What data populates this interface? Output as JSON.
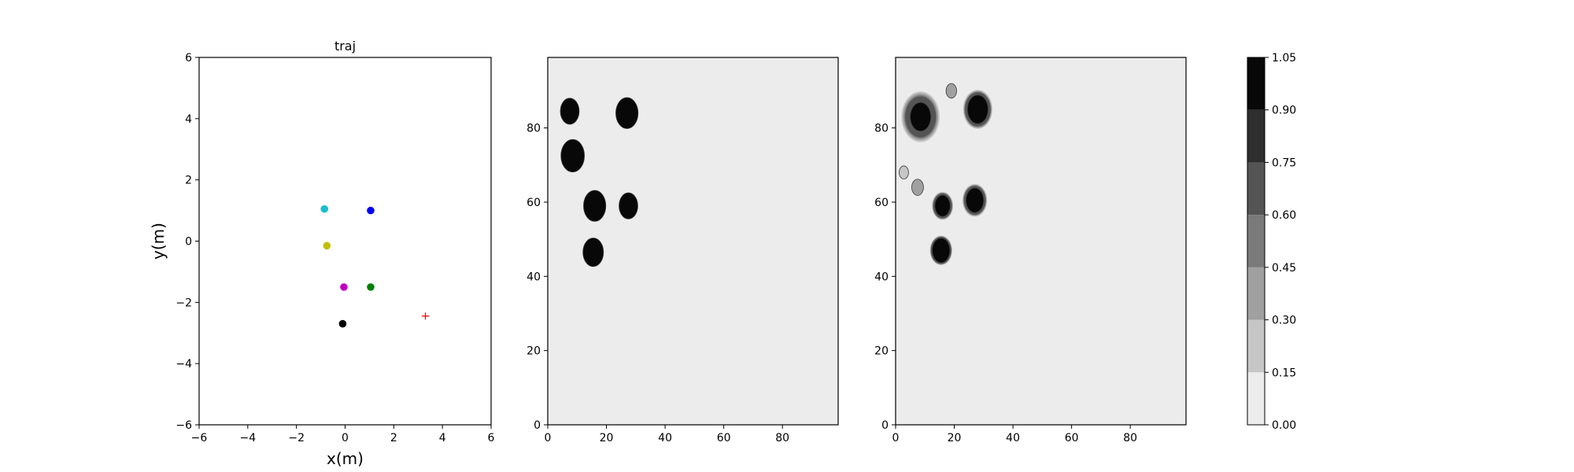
{
  "chart_data": [
    {
      "type": "scatter",
      "title": "traj",
      "xlabel": "x(m)",
      "ylabel": "y(m)",
      "xlim": [
        -6,
        6
      ],
      "ylim": [
        -6,
        6
      ],
      "xticks": [
        "−6",
        "−4",
        "−2",
        "0",
        "2",
        "4",
        "6"
      ],
      "yticks": [
        "−6",
        "−4",
        "−2",
        "0",
        "2",
        "4",
        "6"
      ],
      "grid": false,
      "points": [
        {
          "x": -0.85,
          "y": 1.05,
          "color": "#17becf",
          "marker": "circle"
        },
        {
          "x": 1.05,
          "y": 1.0,
          "color": "#0000ff",
          "marker": "circle"
        },
        {
          "x": -0.75,
          "y": -0.15,
          "color": "#bfbf00",
          "marker": "circle"
        },
        {
          "x": -0.05,
          "y": -1.5,
          "color": "#bf00bf",
          "marker": "circle"
        },
        {
          "x": 1.05,
          "y": -1.5,
          "color": "#008000",
          "marker": "circle"
        },
        {
          "x": -0.1,
          "y": -2.7,
          "color": "#000000",
          "marker": "circle"
        },
        {
          "x": 3.3,
          "y": -2.45,
          "color": "#ff0000",
          "marker": "plus"
        }
      ]
    },
    {
      "type": "heatmap",
      "title": "",
      "xlim": [
        0,
        99
      ],
      "ylim": [
        0,
        99
      ],
      "xticks": [
        "0",
        "20",
        "40",
        "60",
        "80"
      ],
      "yticks": [
        "0",
        "20",
        "40",
        "60",
        "80"
      ],
      "background_level": 0.0,
      "blobs": [
        {
          "x": 7.5,
          "y": 84.5,
          "r": 3.2,
          "level": 1.0
        },
        {
          "x": 27,
          "y": 84,
          "r": 3.8,
          "level": 1.0
        },
        {
          "x": 8.5,
          "y": 72.5,
          "r": 4.0,
          "level": 1.0
        },
        {
          "x": 16,
          "y": 59,
          "r": 3.8,
          "level": 1.0
        },
        {
          "x": 27.5,
          "y": 59,
          "r": 3.2,
          "level": 1.0
        },
        {
          "x": 15.5,
          "y": 46.5,
          "r": 3.5,
          "level": 1.0
        }
      ]
    },
    {
      "type": "heatmap",
      "title": "",
      "xlim": [
        0,
        99
      ],
      "ylim": [
        0,
        99
      ],
      "xticks": [
        "0",
        "20",
        "40",
        "60",
        "80"
      ],
      "yticks": [
        "0",
        "20",
        "40",
        "60",
        "80"
      ],
      "background_level": 0.0,
      "blobs": [
        {
          "x": 8.5,
          "y": 83,
          "r": 3.5,
          "level": 1.0,
          "halo": 6.5
        },
        {
          "x": 28,
          "y": 85,
          "r": 3.5,
          "level": 1.0,
          "halo": 5.0
        },
        {
          "x": 19,
          "y": 90,
          "r": 1.8,
          "level": 0.45,
          "halo": 0
        },
        {
          "x": 16,
          "y": 59,
          "r": 2.6,
          "level": 1.0,
          "halo": 3.6
        },
        {
          "x": 27,
          "y": 60.5,
          "r": 3.0,
          "level": 1.0,
          "halo": 4.2
        },
        {
          "x": 15.5,
          "y": 47,
          "r": 3.0,
          "level": 1.0,
          "halo": 3.8
        },
        {
          "x": 7.5,
          "y": 64,
          "r": 2.0,
          "level": 0.45,
          "halo": 0
        },
        {
          "x": 2.8,
          "y": 68,
          "r": 1.6,
          "level": 0.3,
          "halo": 0
        }
      ]
    },
    {
      "type": "colorbar",
      "range": [
        0.0,
        1.05
      ],
      "ticks": [
        "0.00",
        "0.15",
        "0.30",
        "0.45",
        "0.60",
        "0.75",
        "0.90",
        "1.05"
      ],
      "levels": [
        {
          "from": 0.0,
          "to": 0.15,
          "color": "#ececec"
        },
        {
          "from": 0.15,
          "to": 0.3,
          "color": "#c6c6c6"
        },
        {
          "from": 0.3,
          "to": 0.45,
          "color": "#a0a0a0"
        },
        {
          "from": 0.45,
          "to": 0.6,
          "color": "#7a7a7a"
        },
        {
          "from": 0.6,
          "to": 0.75,
          "color": "#545454"
        },
        {
          "from": 0.75,
          "to": 0.9,
          "color": "#2e2e2e"
        },
        {
          "from": 0.9,
          "to": 1.05,
          "color": "#080808"
        }
      ]
    }
  ]
}
